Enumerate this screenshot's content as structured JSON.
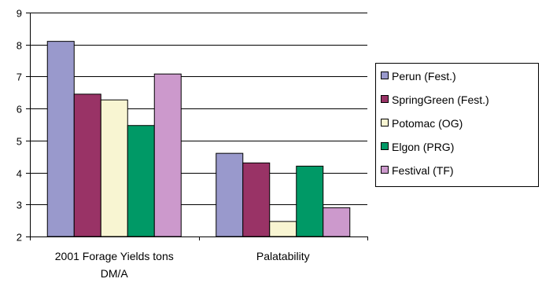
{
  "chart_data": {
    "type": "bar",
    "categories": [
      "2001 Forage Yields tons DM/A",
      "Palatability"
    ],
    "category_lines": [
      [
        "2001 Forage Yields tons",
        "DM/A"
      ],
      [
        "Palatability"
      ]
    ],
    "series": [
      {
        "name": "Perun (Fest.)",
        "values": [
          8.1,
          4.6
        ],
        "color": "#9999cc"
      },
      {
        "name": "SpringGreen (Fest.)",
        "values": [
          6.45,
          4.3
        ],
        "color": "#993366"
      },
      {
        "name": "Potomac (OG)",
        "values": [
          6.27,
          2.47
        ],
        "color": "#f8f5d2"
      },
      {
        "name": "Elgon (PRG)",
        "values": [
          5.47,
          4.2
        ],
        "color": "#009966"
      },
      {
        "name": "Festival (TF)",
        "values": [
          7.08,
          2.9
        ],
        "color": "#cc99cc"
      }
    ],
    "ylim": [
      2,
      9
    ],
    "yticks": [
      "2",
      "3",
      "4",
      "5",
      "6",
      "7",
      "8",
      "9"
    ],
    "grid": true,
    "legend": "right",
    "title": "",
    "xlabel": "",
    "ylabel": ""
  }
}
